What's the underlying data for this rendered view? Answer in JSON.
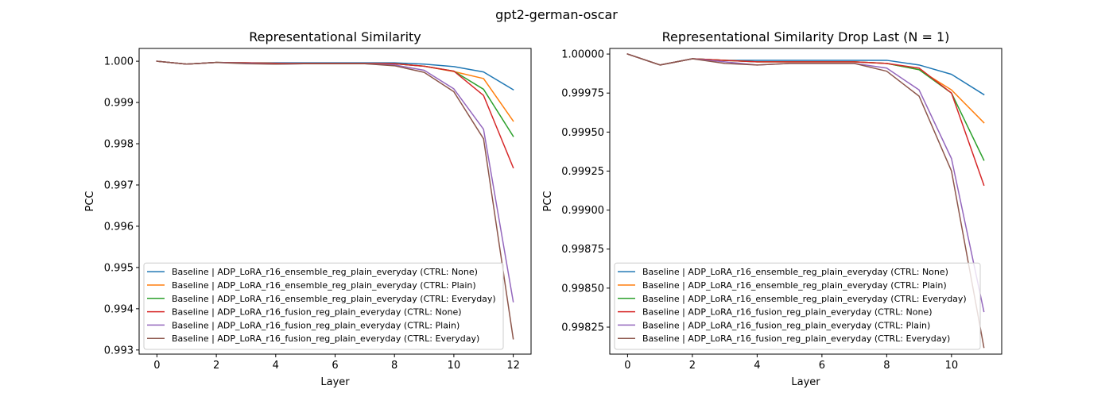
{
  "figure": {
    "suptitle": "gpt2-german-oscar"
  },
  "chart_data": [
    {
      "type": "line",
      "title": "Representational Similarity",
      "xlabel": "Layer",
      "ylabel": "PCC",
      "xlim": [
        -0.6,
        12.6
      ],
      "ylim": [
        0.9929,
        1.00031
      ],
      "xticks": [
        0,
        2,
        4,
        6,
        8,
        10,
        12
      ],
      "xtick_labels": [
        "0",
        "2",
        "4",
        "6",
        "8",
        "10",
        "12"
      ],
      "yticks": [
        0.993,
        0.994,
        0.995,
        0.996,
        0.997,
        0.998,
        0.999,
        1.0
      ],
      "ytick_labels": [
        "0.993",
        "0.994",
        "0.995",
        "0.996",
        "0.997",
        "0.998",
        "0.999",
        "1.000"
      ],
      "grid": false,
      "legend_position": "lower-left",
      "x": [
        0,
        1,
        2,
        3,
        4,
        5,
        6,
        7,
        8,
        9,
        10,
        11,
        12
      ],
      "series": [
        {
          "name": "Baseline | ADP_LoRA_r16_ensemble_reg_plain_everyday (CTRL: None)",
          "color": "#1f77b4",
          "values": [
            1.0,
            0.99993,
            0.99997,
            0.99996,
            0.99996,
            0.99996,
            0.99996,
            0.99996,
            0.99996,
            0.99993,
            0.99987,
            0.99974,
            0.99931
          ]
        },
        {
          "name": "Baseline | ADP_LoRA_r16_ensemble_reg_plain_everyday (CTRL: Plain)",
          "color": "#ff7f0e",
          "values": [
            1.0,
            0.99993,
            0.99997,
            0.99996,
            0.99995,
            0.99995,
            0.99995,
            0.99995,
            0.99994,
            0.99988,
            0.99975,
            0.99958,
            0.99855
          ]
        },
        {
          "name": "Baseline | ADP_LoRA_r16_ensemble_reg_plain_everyday (CTRL: Everyday)",
          "color": "#2ca02c",
          "values": [
            1.0,
            0.99993,
            0.99997,
            0.99996,
            0.99995,
            0.99995,
            0.99995,
            0.99995,
            0.99994,
            0.99988,
            0.99976,
            0.99932,
            0.99818
          ]
        },
        {
          "name": "Baseline | ADP_LoRA_r16_fusion_reg_plain_everyday (CTRL: None)",
          "color": "#d62728",
          "values": [
            1.0,
            0.99993,
            0.99997,
            0.99996,
            0.99995,
            0.99995,
            0.99995,
            0.99995,
            0.99994,
            0.99988,
            0.99976,
            0.99917,
            0.99742
          ]
        },
        {
          "name": "Baseline | ADP_LoRA_r16_fusion_reg_plain_everyday (CTRL: Plain)",
          "color": "#9467bd",
          "values": [
            1.0,
            0.99993,
            0.99997,
            0.99995,
            0.99993,
            0.99994,
            0.99994,
            0.99994,
            0.99991,
            0.99978,
            0.99933,
            0.99835,
            0.99417
          ]
        },
        {
          "name": "Baseline | ADP_LoRA_r16_fusion_reg_plain_everyday (CTRL: Everyday)",
          "color": "#8c564b",
          "values": [
            1.0,
            0.99993,
            0.99997,
            0.99994,
            0.99993,
            0.99994,
            0.99994,
            0.99994,
            0.99989,
            0.99973,
            0.99926,
            0.99812,
            0.99327
          ]
        }
      ]
    },
    {
      "type": "line",
      "title": "Representational Similarity Drop Last (N = 1)",
      "xlabel": "Layer",
      "ylabel": "PCC",
      "xlim": [
        -0.55,
        11.55
      ],
      "ylim": [
        0.998077,
        1.000036
      ],
      "xticks": [
        0,
        2,
        4,
        6,
        8,
        10
      ],
      "xtick_labels": [
        "0",
        "2",
        "4",
        "6",
        "8",
        "10"
      ],
      "yticks": [
        0.99825,
        0.9985,
        0.99875,
        0.999,
        0.99925,
        0.9995,
        0.99975,
        1.0
      ],
      "ytick_labels": [
        "0.99825",
        "0.99850",
        "0.99875",
        "0.99900",
        "0.99925",
        "0.99950",
        "0.99975",
        "1.00000"
      ],
      "grid": false,
      "legend_position": "lower-left",
      "x": [
        0,
        1,
        2,
        3,
        4,
        5,
        6,
        7,
        8,
        9,
        10,
        11
      ],
      "series": [
        {
          "name": "Baseline | ADP_LoRA_r16_ensemble_reg_plain_everyday (CTRL: None)",
          "color": "#1f77b4",
          "values": [
            1.0,
            0.99993,
            0.99997,
            0.99996,
            0.99996,
            0.99996,
            0.99996,
            0.99996,
            0.99996,
            0.99993,
            0.99987,
            0.99974
          ]
        },
        {
          "name": "Baseline | ADP_LoRA_r16_ensemble_reg_plain_everyday (CTRL: Plain)",
          "color": "#ff7f0e",
          "values": [
            1.0,
            0.99993,
            0.99997,
            0.99996,
            0.99995,
            0.99995,
            0.99995,
            0.99995,
            0.99994,
            0.9999,
            0.99977,
            0.99956
          ]
        },
        {
          "name": "Baseline | ADP_LoRA_r16_ensemble_reg_plain_everyday (CTRL: Everyday)",
          "color": "#2ca02c",
          "values": [
            1.0,
            0.99993,
            0.99997,
            0.99996,
            0.99995,
            0.99995,
            0.99995,
            0.99995,
            0.99994,
            0.9999,
            0.99975,
            0.99932
          ]
        },
        {
          "name": "Baseline | ADP_LoRA_r16_fusion_reg_plain_everyday (CTRL: None)",
          "color": "#d62728",
          "values": [
            1.0,
            0.99993,
            0.99997,
            0.99996,
            0.99995,
            0.99995,
            0.99995,
            0.99995,
            0.99994,
            0.99991,
            0.99975,
            0.99916
          ]
        },
        {
          "name": "Baseline | ADP_LoRA_r16_fusion_reg_plain_everyday (CTRL: Plain)",
          "color": "#9467bd",
          "values": [
            1.0,
            0.99993,
            0.99997,
            0.99995,
            0.99993,
            0.99994,
            0.99994,
            0.99994,
            0.99991,
            0.99977,
            0.99933,
            0.99835
          ]
        },
        {
          "name": "Baseline | ADP_LoRA_r16_fusion_reg_plain_everyday (CTRL: Everyday)",
          "color": "#8c564b",
          "values": [
            1.0,
            0.99993,
            0.99997,
            0.99994,
            0.99993,
            0.99994,
            0.99994,
            0.99994,
            0.99989,
            0.99973,
            0.99925,
            0.99812
          ]
        }
      ]
    }
  ]
}
